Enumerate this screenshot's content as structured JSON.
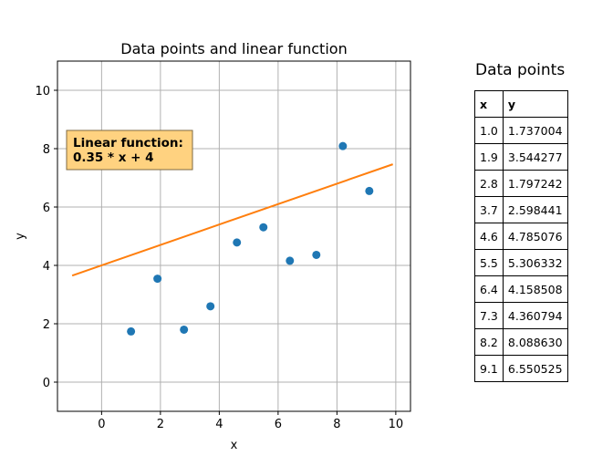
{
  "chart_data": {
    "type": "scatter",
    "title": "Data points and linear function",
    "xlabel": "x",
    "ylabel": "y",
    "xlim": [
      -1.5,
      10.5
    ],
    "ylim": [
      -1,
      11
    ],
    "xticks": [
      0,
      2,
      4,
      6,
      8,
      10
    ],
    "yticks": [
      0,
      2,
      4,
      6,
      8,
      10
    ],
    "grid": true,
    "series": [
      {
        "type": "scatter",
        "color": "#1f77b4",
        "x": [
          1.0,
          1.9,
          2.8,
          3.7,
          4.6,
          5.5,
          6.4,
          7.3,
          8.2,
          9.1
        ],
        "y": [
          1.737004,
          3.544277,
          1.797242,
          2.598441,
          4.785076,
          5.306332,
          4.158508,
          4.360794,
          8.08863,
          6.550525
        ]
      },
      {
        "type": "line",
        "color": "#ff7f0e",
        "x": [
          -1.0,
          9.9
        ],
        "y": [
          3.65,
          7.465
        ]
      }
    ],
    "annotation": {
      "text_line1": "Linear function:",
      "text_line2": "0.35 * x + 4",
      "background": "#ffd280",
      "position": "upper-left"
    }
  },
  "table": {
    "title": "Data points",
    "headers": [
      "x",
      "y"
    ],
    "rows": [
      [
        "1.0",
        "1.737004"
      ],
      [
        "1.9",
        "3.544277"
      ],
      [
        "2.8",
        "1.797242"
      ],
      [
        "3.7",
        "2.598441"
      ],
      [
        "4.6",
        "4.785076"
      ],
      [
        "5.5",
        "5.306332"
      ],
      [
        "6.4",
        "4.158508"
      ],
      [
        "7.3",
        "4.360794"
      ],
      [
        "8.2",
        "8.088630"
      ],
      [
        "9.1",
        "6.550525"
      ]
    ]
  }
}
